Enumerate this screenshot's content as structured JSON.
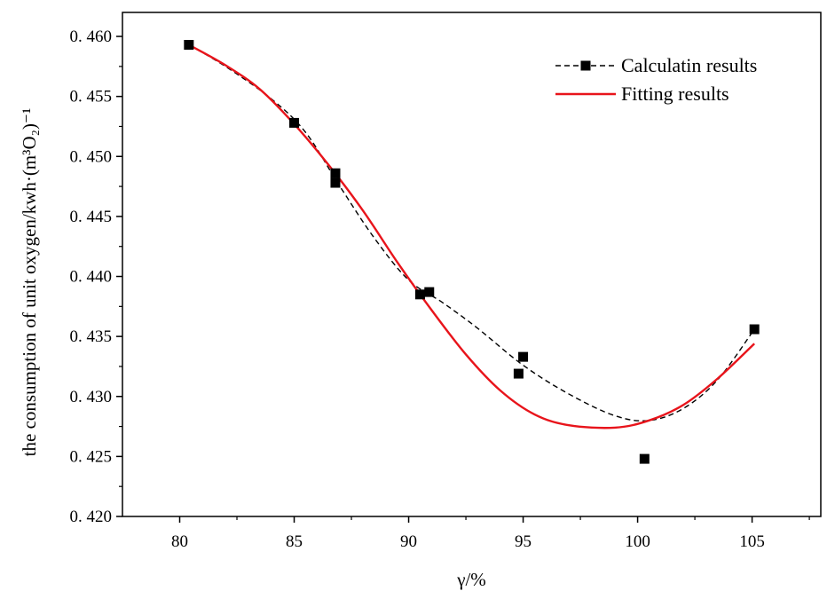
{
  "chart_data": {
    "type": "scatter",
    "title": "",
    "xlabel": "γ/%",
    "ylabel": "the consumption of  unit oxygen/kwh·(m³O₂)⁻¹",
    "xlim": [
      77.5,
      108
    ],
    "ylim": [
      0.42,
      0.462
    ],
    "x_ticks": [
      80,
      85,
      90,
      95,
      100,
      105
    ],
    "x_tick_labels": [
      "80",
      "85",
      "90",
      "95",
      "100",
      "105"
    ],
    "y_ticks": [
      0.42,
      0.425,
      0.43,
      0.435,
      0.44,
      0.445,
      0.45,
      0.455,
      0.46
    ],
    "y_tick_labels": [
      "0. 420",
      "0. 425",
      "0. 430",
      "0. 435",
      "0. 440",
      "0. 445",
      "0. 450",
      "0. 455",
      "0. 460"
    ],
    "grid": false,
    "legend_position": "top-right",
    "series": [
      {
        "name": "Calculatin results",
        "style": "dashed-line-square-markers",
        "color": "#000000",
        "points": [
          {
            "x": 80.4,
            "y": 0.4593
          },
          {
            "x": 85.0,
            "y": 0.4528
          },
          {
            "x": 86.8,
            "y": 0.4486
          },
          {
            "x": 86.8,
            "y": 0.4478
          },
          {
            "x": 90.5,
            "y": 0.4385
          },
          {
            "x": 90.9,
            "y": 0.4387
          },
          {
            "x": 94.8,
            "y": 0.4319
          },
          {
            "x": 95.0,
            "y": 0.4333
          },
          {
            "x": 100.3,
            "y": 0.4248
          },
          {
            "x": 105.1,
            "y": 0.4356
          }
        ],
        "curve": [
          {
            "x": 80.4,
            "y": 0.4593
          },
          {
            "x": 82.0,
            "y": 0.4575
          },
          {
            "x": 84.0,
            "y": 0.4548
          },
          {
            "x": 85.5,
            "y": 0.452
          },
          {
            "x": 87.0,
            "y": 0.4475
          },
          {
            "x": 88.5,
            "y": 0.4432
          },
          {
            "x": 90.0,
            "y": 0.4397
          },
          {
            "x": 91.5,
            "y": 0.4378
          },
          {
            "x": 93.0,
            "y": 0.4357
          },
          {
            "x": 95.0,
            "y": 0.4326
          },
          {
            "x": 97.0,
            "y": 0.4302
          },
          {
            "x": 99.0,
            "y": 0.4284
          },
          {
            "x": 100.5,
            "y": 0.428
          },
          {
            "x": 102.0,
            "y": 0.429
          },
          {
            "x": 103.5,
            "y": 0.4314
          },
          {
            "x": 105.1,
            "y": 0.4356
          }
        ]
      },
      {
        "name": "Fitting results",
        "style": "solid-line",
        "color": "#e8141b",
        "curve": [
          {
            "x": 80.4,
            "y": 0.4593
          },
          {
            "x": 82.0,
            "y": 0.4576
          },
          {
            "x": 83.5,
            "y": 0.4556
          },
          {
            "x": 85.0,
            "y": 0.4527
          },
          {
            "x": 86.5,
            "y": 0.4493
          },
          {
            "x": 88.0,
            "y": 0.4455
          },
          {
            "x": 89.5,
            "y": 0.4412
          },
          {
            "x": 91.0,
            "y": 0.4372
          },
          {
            "x": 92.5,
            "y": 0.4335
          },
          {
            "x": 94.0,
            "y": 0.4305
          },
          {
            "x": 95.5,
            "y": 0.4285
          },
          {
            "x": 97.0,
            "y": 0.4276
          },
          {
            "x": 99.0,
            "y": 0.4274
          },
          {
            "x": 100.5,
            "y": 0.428
          },
          {
            "x": 102.0,
            "y": 0.4293
          },
          {
            "x": 103.5,
            "y": 0.4315
          },
          {
            "x": 105.1,
            "y": 0.4344
          }
        ]
      }
    ]
  }
}
